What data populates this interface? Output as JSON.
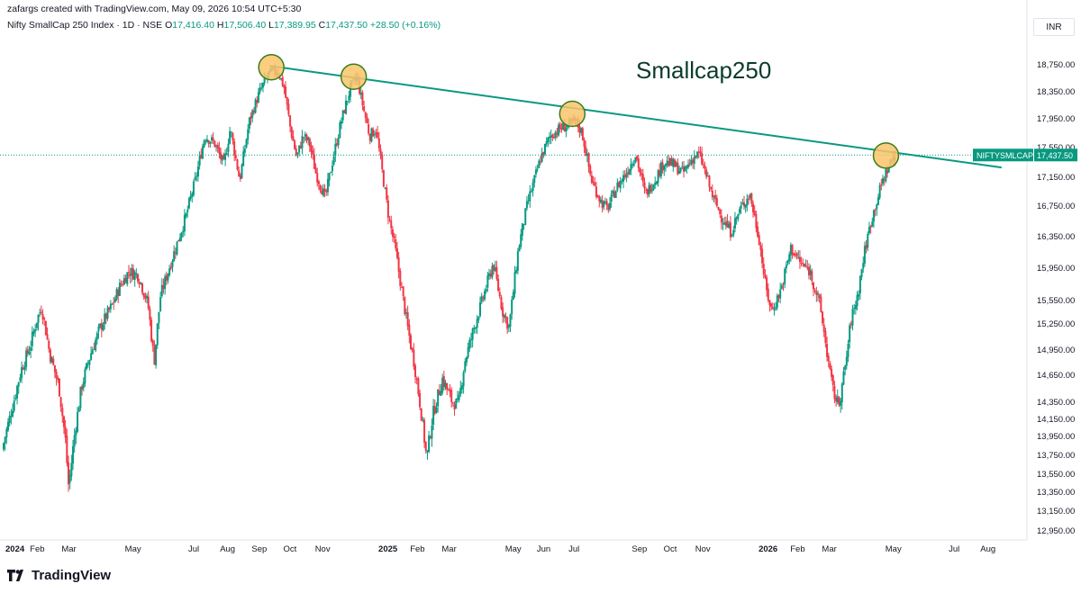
{
  "header": {
    "credit": "zafargs created with TradingView.com, May 09, 2026 10:54 UTC+5:30",
    "symbol_desc": "Nifty SmallCap 250 Index · 1D · NSE",
    "ohlc": {
      "o_label": "O",
      "o_value": "17,416.40",
      "h_label": "H",
      "h_value": "17,506.40",
      "l_label": "L",
      "l_value": "17,389.95",
      "c_label": "C",
      "c_value": "17,437.50",
      "change": "+28.50 (+0.16%)"
    },
    "currency": "INR"
  },
  "footer": {
    "brand": "TradingView"
  },
  "chart_data": {
    "type": "candlestick",
    "title": "Smallcap250",
    "symbol_tag": "NIFTYSMLCAP250",
    "last_price": 17437.5,
    "last_price_label": "17,437.50",
    "colors": {
      "up": "#089981",
      "down": "#f23645",
      "trendline": "#089981",
      "marker_fill": "#f9c46b",
      "marker_stroke": "#3a7d1a",
      "title": "#0b3b2c"
    },
    "x_axis": {
      "range_months": [
        0,
        20.2
      ],
      "ticks": [
        {
          "label": "2024",
          "m": 0,
          "bold": true
        },
        {
          "label": "Feb",
          "m": 1
        },
        {
          "label": "Mar",
          "m": 2
        },
        {
          "label": "May",
          "m": 4
        },
        {
          "label": "Jul",
          "m": 6
        },
        {
          "label": "Aug",
          "m": 7
        },
        {
          "label": "Sep",
          "m": 8
        },
        {
          "label": "Oct",
          "m": 9
        },
        {
          "label": "Nov",
          "m": 10
        },
        {
          "label": "2025",
          "m": 12,
          "bold": true
        },
        {
          "label": "Feb",
          "m": 13
        },
        {
          "label": "Mar",
          "m": 14
        },
        {
          "label": "May",
          "m": 16
        },
        {
          "label": "Jun",
          "m": 17
        },
        {
          "label": "Jul",
          "m": 18
        },
        {
          "label": "Sep",
          "m": 20
        },
        {
          "label": "Oct",
          "m": 21
        },
        {
          "label": "Nov",
          "m": 22
        },
        {
          "label": "2026",
          "m": 24,
          "bold": true
        },
        {
          "label": "Feb",
          "m": 25
        },
        {
          "label": "Mar",
          "m": 26
        },
        {
          "label": "May",
          "m": 28
        },
        {
          "label": "Jul",
          "m": 30
        },
        {
          "label": "Aug",
          "m": 31
        }
      ]
    },
    "y_axis": {
      "ylim": [
        12800,
        19000
      ],
      "ticks": [
        {
          "v": 18750,
          "label": "18,750.00"
        },
        {
          "v": 18350,
          "label": "18,350.00"
        },
        {
          "v": 17950,
          "label": "17,950.00"
        },
        {
          "v": 17550,
          "label": "17,550.00"
        },
        {
          "v": 17150,
          "label": "17,150.00"
        },
        {
          "v": 16750,
          "label": "16,750.00"
        },
        {
          "v": 16350,
          "label": "16,350.00"
        },
        {
          "v": 15950,
          "label": "15,950.00"
        },
        {
          "v": 15550,
          "label": "15,550.00"
        },
        {
          "v": 15250,
          "label": "15,250.00"
        },
        {
          "v": 14950,
          "label": "14,950.00"
        },
        {
          "v": 14650,
          "label": "14,650.00"
        },
        {
          "v": 14350,
          "label": "14,350.00"
        },
        {
          "v": 14150,
          "label": "14,150.00"
        },
        {
          "v": 13950,
          "label": "13,950.00"
        },
        {
          "v": 13750,
          "label": "13,750.00"
        },
        {
          "v": 13550,
          "label": "13,550.00"
        },
        {
          "v": 13350,
          "label": "13,350.00"
        },
        {
          "v": 13150,
          "label": "13,150.00"
        },
        {
          "v": 12950,
          "label": "12,950.00"
        }
      ]
    },
    "path_points": [
      [
        0.0,
        13800
      ],
      [
        0.3,
        14250
      ],
      [
        0.6,
        14700
      ],
      [
        0.9,
        15000
      ],
      [
        1.1,
        15300
      ],
      [
        1.25,
        15450
      ],
      [
        1.5,
        14900
      ],
      [
        1.8,
        14500
      ],
      [
        2.0,
        13900
      ],
      [
        2.1,
        13400
      ],
      [
        2.3,
        14000
      ],
      [
        2.5,
        14500
      ],
      [
        2.8,
        14900
      ],
      [
        3.1,
        15200
      ],
      [
        3.5,
        15500
      ],
      [
        3.7,
        15700
      ],
      [
        4.0,
        15900
      ],
      [
        4.3,
        15850
      ],
      [
        4.6,
        15500
      ],
      [
        4.8,
        14800
      ],
      [
        5.0,
        15600
      ],
      [
        5.4,
        16100
      ],
      [
        5.8,
        16600
      ],
      [
        6.1,
        17100
      ],
      [
        6.4,
        17700
      ],
      [
        6.7,
        17600
      ],
      [
        7.0,
        17300
      ],
      [
        7.2,
        17800
      ],
      [
        7.5,
        17100
      ],
      [
        7.8,
        17900
      ],
      [
        8.1,
        18300
      ],
      [
        8.4,
        18600
      ],
      [
        8.7,
        18650
      ],
      [
        8.9,
        18400
      ],
      [
        9.1,
        17800
      ],
      [
        9.3,
        17400
      ],
      [
        9.5,
        17700
      ],
      [
        9.7,
        17600
      ],
      [
        9.9,
        17200
      ],
      [
        10.2,
        16850
      ],
      [
        10.4,
        17300
      ],
      [
        10.7,
        17900
      ],
      [
        11.0,
        18400
      ],
      [
        11.2,
        18550
      ],
      [
        11.4,
        18100
      ],
      [
        11.6,
        17700
      ],
      [
        11.8,
        17800
      ],
      [
        12.0,
        17200
      ],
      [
        12.2,
        16600
      ],
      [
        12.4,
        16200
      ],
      [
        12.6,
        15700
      ],
      [
        12.8,
        15200
      ],
      [
        13.0,
        14800
      ],
      [
        13.2,
        14300
      ],
      [
        13.4,
        13700
      ],
      [
        13.6,
        14200
      ],
      [
        13.9,
        14600
      ],
      [
        14.2,
        14350
      ],
      [
        14.4,
        14300
      ],
      [
        14.6,
        14800
      ],
      [
        14.9,
        15200
      ],
      [
        15.2,
        15600
      ],
      [
        15.5,
        16000
      ],
      [
        15.8,
        15400
      ],
      [
        16.0,
        15200
      ],
      [
        16.3,
        16200
      ],
      [
        16.6,
        16800
      ],
      [
        17.0,
        17400
      ],
      [
        17.3,
        17700
      ],
      [
        17.6,
        17800
      ],
      [
        17.9,
        17850
      ],
      [
        18.1,
        17900
      ],
      [
        18.3,
        17750
      ],
      [
        18.6,
        17100
      ],
      [
        18.9,
        16800
      ],
      [
        19.1,
        16700
      ],
      [
        19.4,
        17000
      ],
      [
        19.7,
        17200
      ],
      [
        20.0,
        17450
      ],
      [
        20.3,
        16900
      ],
      [
        20.6,
        17100
      ],
      [
        20.9,
        17350
      ],
      [
        21.2,
        17300
      ],
      [
        21.5,
        17200
      ],
      [
        21.8,
        17400
      ],
      [
        22.0,
        17450
      ],
      [
        22.2,
        17200
      ],
      [
        22.4,
        16900
      ],
      [
        22.7,
        16600
      ],
      [
        23.0,
        16400
      ],
      [
        23.3,
        16700
      ],
      [
        23.6,
        16900
      ],
      [
        23.9,
        16300
      ],
      [
        24.1,
        15700
      ],
      [
        24.3,
        15400
      ],
      [
        24.6,
        15700
      ],
      [
        24.9,
        16200
      ],
      [
        25.2,
        16000
      ],
      [
        25.5,
        15900
      ],
      [
        25.8,
        15500
      ],
      [
        26.0,
        15000
      ],
      [
        26.2,
        14500
      ],
      [
        26.4,
        14300
      ],
      [
        26.6,
        14700
      ],
      [
        26.8,
        15300
      ],
      [
        27.0,
        15600
      ],
      [
        27.2,
        16100
      ],
      [
        27.4,
        16500
      ],
      [
        27.6,
        16800
      ],
      [
        27.8,
        17100
      ],
      [
        28.0,
        17300
      ],
      [
        28.15,
        17437.5
      ]
    ],
    "trendline": {
      "start": {
        "m": 8.4,
        "v": 18720
      },
      "end": {
        "m": 31.5,
        "v": 17270
      }
    },
    "touch_points": [
      {
        "m": 8.45,
        "v": 18700
      },
      {
        "m": 11.05,
        "v": 18560
      },
      {
        "m": 17.95,
        "v": 18010
      },
      {
        "m": 27.85,
        "v": 17430
      }
    ]
  }
}
